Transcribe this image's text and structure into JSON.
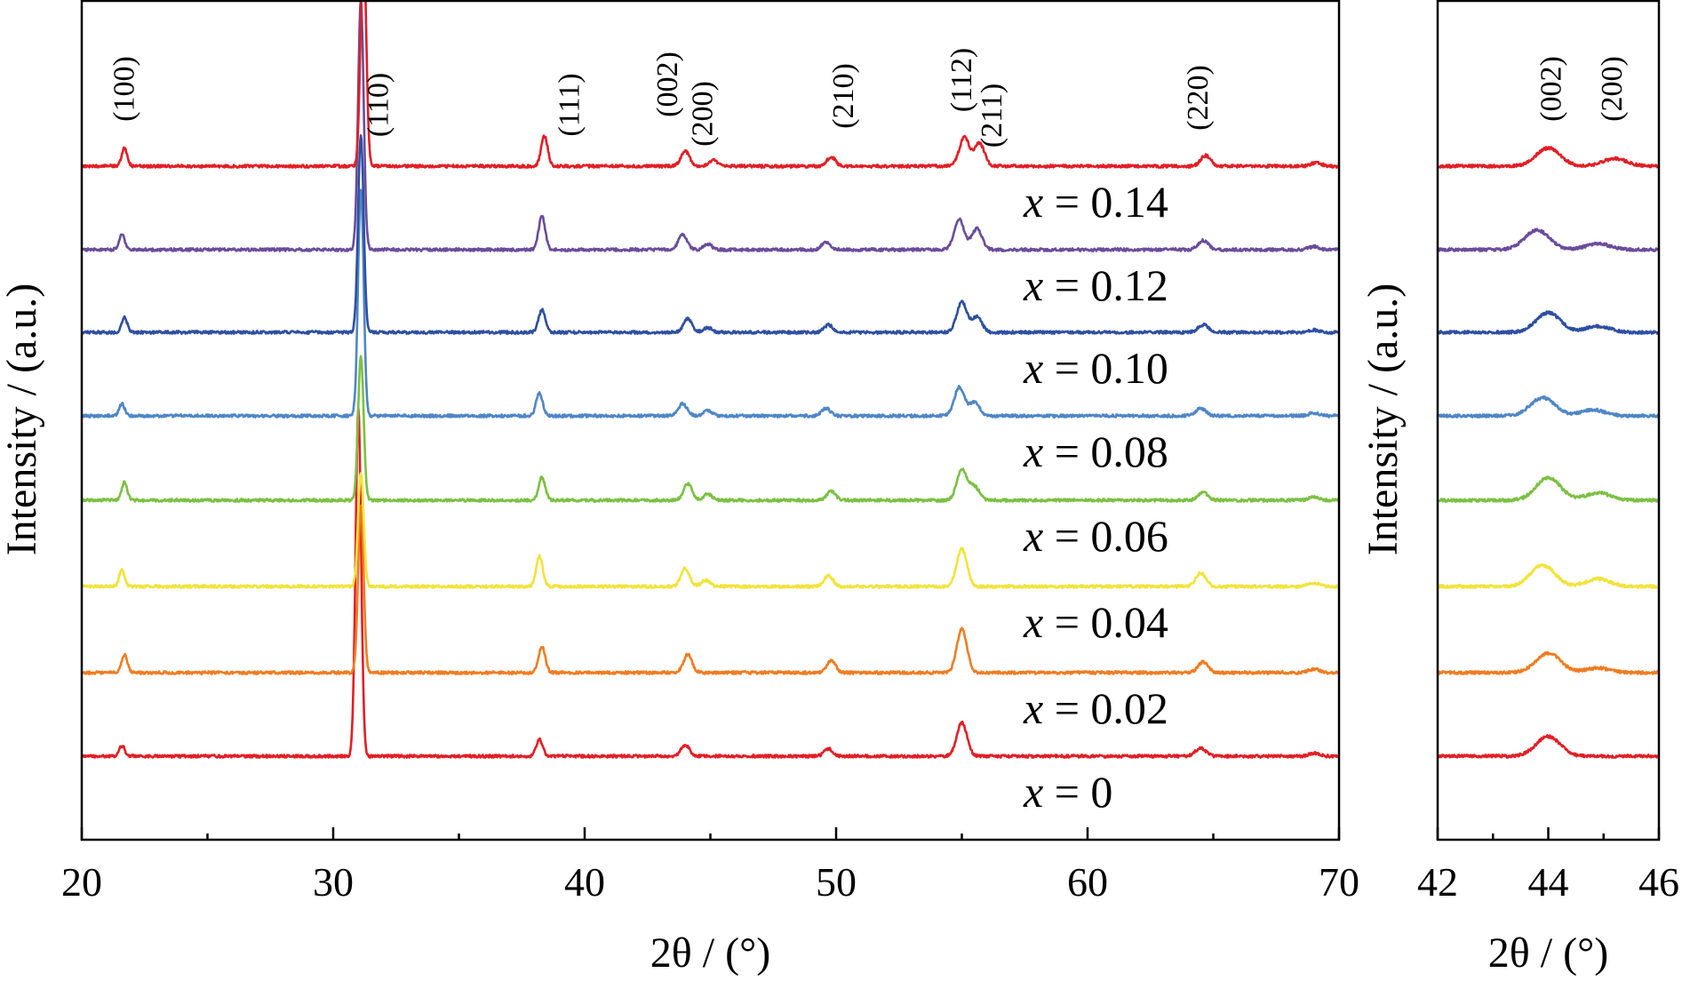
{
  "chart_data": [
    {
      "type": "line",
      "panel": "main",
      "xlabel": "2θ / (°)",
      "ylabel": "Intensity / (a.u.)",
      "xlim": [
        20,
        70
      ],
      "x_ticks": [
        20,
        30,
        40,
        50,
        60,
        70
      ],
      "x_minor_ticks": [
        25,
        35,
        45,
        55,
        65
      ],
      "y_ticks_shown": false,
      "peak_labels": [
        {
          "label": "(100)",
          "x": 21.8
        },
        {
          "label": "(110)",
          "x": 31.9
        },
        {
          "label": "(111)",
          "x": 39.5
        },
        {
          "label": "(002)",
          "x": 43.4
        },
        {
          "label": "(200)",
          "x": 44.8
        },
        {
          "label": "(210)",
          "x": 50.4
        },
        {
          "label": "(112)",
          "x": 55.1
        },
        {
          "label": "(211)",
          "x": 56.3
        },
        {
          "label": "(220)",
          "x": 64.5
        }
      ],
      "series": [
        {
          "label": "x = 0",
          "color": "#e31e24",
          "peaks": [
            [
              21.6,
              14
            ],
            [
              31.0,
              460
            ],
            [
              38.2,
              22
            ],
            [
              44.0,
              15
            ],
            [
              49.7,
              10
            ],
            [
              55.0,
              45
            ],
            [
              64.5,
              11
            ],
            [
              69.0,
              4
            ]
          ]
        },
        {
          "label": "x = 0.02",
          "color": "#f07c21",
          "peaks": [
            [
              21.7,
              24
            ],
            [
              31.1,
              220
            ],
            [
              38.3,
              35
            ],
            [
              44.1,
              24
            ],
            [
              49.8,
              16
            ],
            [
              55.0,
              58
            ],
            [
              64.6,
              14
            ],
            [
              69.0,
              5
            ]
          ]
        },
        {
          "label": "x = 0.04",
          "color": "#f2e33a",
          "peaks": [
            [
              21.6,
              22
            ],
            [
              31.1,
              150
            ],
            [
              38.2,
              40
            ],
            [
              44.0,
              24
            ],
            [
              44.8,
              8
            ],
            [
              49.7,
              15
            ],
            [
              55.0,
              50
            ],
            [
              64.5,
              18
            ],
            [
              69.0,
              5
            ]
          ]
        },
        {
          "label": "x = 0.06",
          "color": "#7ac142",
          "peaks": [
            [
              21.7,
              24
            ],
            [
              31.1,
              190
            ],
            [
              38.3,
              30
            ],
            [
              44.1,
              22
            ],
            [
              44.9,
              8
            ],
            [
              49.8,
              12
            ],
            [
              55.0,
              40
            ],
            [
              55.5,
              18
            ],
            [
              64.6,
              10
            ],
            [
              69.0,
              5
            ]
          ]
        },
        {
          "label": "x = 0.08",
          "color": "#4f86c6",
          "peaks": [
            [
              21.6,
              16
            ],
            [
              31.1,
              300
            ],
            [
              38.2,
              30
            ],
            [
              43.9,
              16
            ],
            [
              44.9,
              7
            ],
            [
              49.6,
              10
            ],
            [
              54.9,
              38
            ],
            [
              55.5,
              18
            ],
            [
              64.5,
              10
            ],
            [
              69.0,
              4
            ]
          ]
        },
        {
          "label": "x = 0.10",
          "color": "#2e4fa2",
          "peaks": [
            [
              21.7,
              20
            ],
            [
              31.1,
              260
            ],
            [
              38.3,
              30
            ],
            [
              44.1,
              18
            ],
            [
              44.9,
              6
            ],
            [
              49.7,
              10
            ],
            [
              55.0,
              40
            ],
            [
              55.6,
              20
            ],
            [
              64.6,
              10
            ],
            [
              69.0,
              3
            ]
          ]
        },
        {
          "label": "x = 0.12",
          "color": "#6a4c9c",
          "peaks": [
            [
              21.6,
              20
            ],
            [
              31.1,
              330
            ],
            [
              38.3,
              45
            ],
            [
              43.9,
              20
            ],
            [
              44.9,
              7
            ],
            [
              49.6,
              10
            ],
            [
              54.9,
              40
            ],
            [
              55.6,
              28
            ],
            [
              64.6,
              12
            ],
            [
              69.0,
              4
            ]
          ]
        },
        {
          "label": "x = 0.14",
          "color": "#e31e24",
          "peaks": [
            [
              21.7,
              24
            ],
            [
              31.2,
              300
            ],
            [
              38.4,
              40
            ],
            [
              44.0,
              20
            ],
            [
              45.1,
              8
            ],
            [
              49.8,
              12
            ],
            [
              55.1,
              38
            ],
            [
              55.7,
              30
            ],
            [
              64.7,
              14
            ],
            [
              69.1,
              5
            ]
          ]
        }
      ]
    },
    {
      "type": "line",
      "panel": "inset",
      "xlabel": "2θ / (°)",
      "ylabel": "Intensity / (a.u.)",
      "xlim": [
        42,
        46
      ],
      "x_ticks": [
        42,
        44,
        46
      ],
      "x_minor_ticks": [
        43,
        45
      ],
      "y_ticks_shown": false,
      "peak_labels": [
        {
          "label": "(002)",
          "x": 44.1
        },
        {
          "label": "(200)",
          "x": 45.2
        }
      ],
      "series": [
        {
          "label": "x = 0",
          "color": "#e31e24",
          "peaks": [
            [
              44.0,
              26
            ]
          ]
        },
        {
          "label": "x = 0.02",
          "color": "#f07c21",
          "peaks": [
            [
              44.0,
              26
            ],
            [
              44.9,
              6
            ]
          ]
        },
        {
          "label": "x = 0.04",
          "color": "#f2e33a",
          "peaks": [
            [
              43.9,
              28
            ],
            [
              44.9,
              10
            ]
          ]
        },
        {
          "label": "x = 0.06",
          "color": "#7ac142",
          "peaks": [
            [
              44.0,
              30
            ],
            [
              44.9,
              10
            ]
          ]
        },
        {
          "label": "x = 0.08",
          "color": "#4f86c6",
          "peaks": [
            [
              43.9,
              24
            ],
            [
              44.8,
              8
            ]
          ]
        },
        {
          "label": "x = 0.10",
          "color": "#2e4fa2",
          "peaks": [
            [
              44.0,
              26
            ],
            [
              44.9,
              8
            ]
          ]
        },
        {
          "label": "x = 0.12",
          "color": "#6a4c9c",
          "peaks": [
            [
              43.8,
              26
            ],
            [
              44.9,
              8
            ]
          ]
        },
        {
          "label": "x = 0.14",
          "color": "#e31e24",
          "peaks": [
            [
              44.0,
              24
            ],
            [
              45.2,
              10
            ]
          ]
        }
      ]
    }
  ]
}
